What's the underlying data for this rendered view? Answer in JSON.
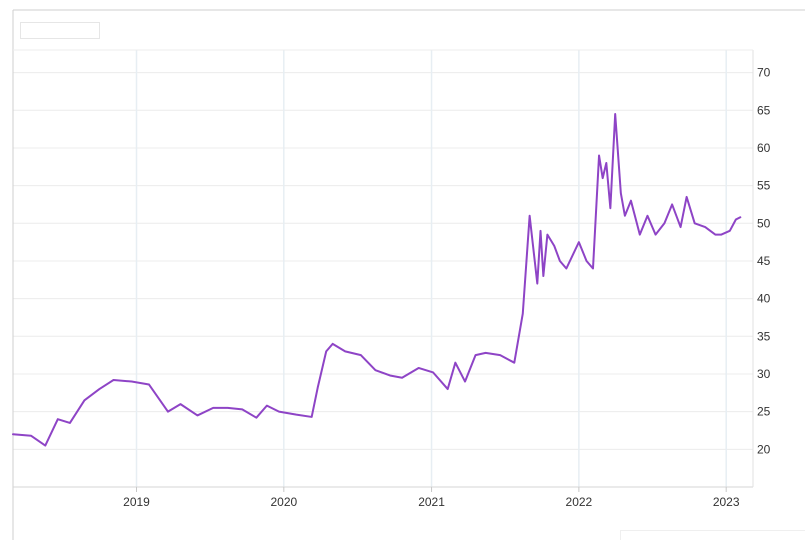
{
  "chart_data": {
    "type": "line",
    "title": "",
    "xlabel": "",
    "ylabel": "",
    "xlim": [
      "2018-03-01",
      "2023-03-01"
    ],
    "ylim": [
      15,
      73
    ],
    "x_ticks": [
      "2019",
      "2020",
      "2021",
      "2022",
      "2023"
    ],
    "y_ticks": [
      20,
      25,
      30,
      35,
      40,
      45,
      50,
      55,
      60,
      65,
      70
    ],
    "grid": true,
    "line_color": "#8e44c6",
    "x": [
      "2018-03-01",
      "2018-04-15",
      "2018-05-20",
      "2018-06-20",
      "2018-07-20",
      "2018-08-25",
      "2018-10-01",
      "2018-11-05",
      "2018-12-20",
      "2019-02-01",
      "2019-03-20",
      "2019-04-20",
      "2019-06-01",
      "2019-07-10",
      "2019-08-15",
      "2019-09-20",
      "2019-10-25",
      "2019-11-20",
      "2019-12-20",
      "2020-02-01",
      "2020-03-10",
      "2020-03-25",
      "2020-04-15",
      "2020-05-01",
      "2020-06-01",
      "2020-07-10",
      "2020-08-15",
      "2020-09-20",
      "2020-10-20",
      "2020-11-30",
      "2021-01-05",
      "2021-02-10",
      "2021-03-01",
      "2021-03-25",
      "2021-04-20",
      "2021-05-15",
      "2021-06-20",
      "2021-07-25",
      "2021-08-15",
      "2021-09-01",
      "2021-09-20",
      "2021-09-28",
      "2021-10-05",
      "2021-10-15",
      "2021-11-01",
      "2021-11-15",
      "2021-12-01",
      "2022-01-01",
      "2022-01-20",
      "2022-02-05",
      "2022-02-20",
      "2022-03-01",
      "2022-03-10",
      "2022-03-20",
      "2022-04-01",
      "2022-04-15",
      "2022-04-25",
      "2022-05-10",
      "2022-06-01",
      "2022-06-20",
      "2022-07-10",
      "2022-08-01",
      "2022-08-20",
      "2022-09-10",
      "2022-09-25",
      "2022-10-15",
      "2022-11-10",
      "2022-12-05",
      "2022-12-20",
      "2023-01-10",
      "2023-01-25",
      "2023-02-05"
    ],
    "values": [
      22,
      21.8,
      20.5,
      24,
      23.5,
      26.5,
      28,
      29.2,
      29,
      28.6,
      25,
      26,
      24.5,
      25.5,
      25.5,
      25.3,
      24.2,
      25.8,
      25,
      24.6,
      24.3,
      28.2,
      33,
      34,
      33,
      32.5,
      30.5,
      29.8,
      29.5,
      30.8,
      30.2,
      28,
      31.5,
      29,
      32.5,
      32.8,
      32.5,
      31.5,
      38,
      51,
      42,
      49,
      43,
      48.5,
      47,
      45,
      44,
      47.5,
      45,
      44,
      59,
      56,
      58,
      52,
      64.5,
      54,
      51,
      53,
      48.5,
      51,
      48.5,
      50,
      52.5,
      49.5,
      53.5,
      50,
      49.5,
      48.5,
      48.5,
      49,
      50.5,
      50.8
    ]
  }
}
